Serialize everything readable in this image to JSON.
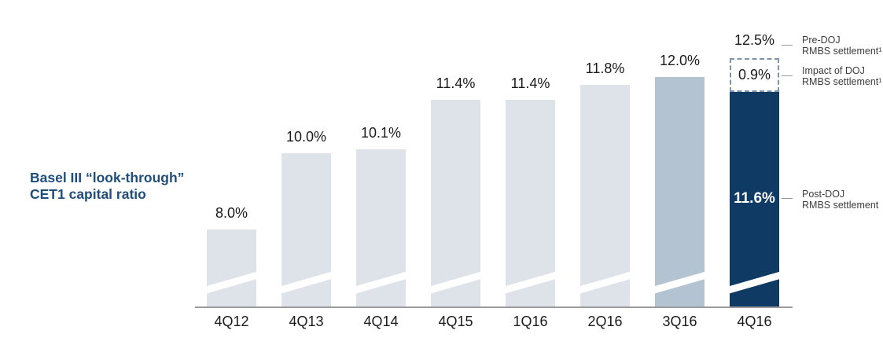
{
  "chart_data": {
    "type": "bar",
    "title": "Basel III “look-through” CET1 capital ratio",
    "title_lines": [
      "Basel III “look-through”",
      "CET1 capital ratio"
    ],
    "categories": [
      "4Q12",
      "4Q13",
      "4Q14",
      "4Q15",
      "1Q16",
      "2Q16",
      "3Q16",
      "4Q16"
    ],
    "values": [
      8.0,
      10.0,
      10.1,
      11.4,
      11.4,
      11.8,
      12.0,
      11.6
    ],
    "data_labels": [
      "8.0%",
      "10.0%",
      "10.1%",
      "11.4%",
      "11.4%",
      "11.8%",
      "12.0%",
      "11.6%"
    ],
    "bar_styles": [
      "default",
      "default",
      "default",
      "default",
      "default",
      "default",
      "highlight",
      "accent"
    ],
    "axis_break": true,
    "grid": false,
    "legend": "none",
    "ylim": [
      0,
      13
    ],
    "final_bar": {
      "category": "4Q16",
      "post_doj_value": 11.6,
      "post_doj_label": "11.6%",
      "impact_value": 0.9,
      "impact_label": "0.9%",
      "pre_doj_value": 12.5,
      "pre_doj_label": "12.5%"
    },
    "annotations": [
      {
        "lines": [
          "Pre-DOJ",
          "RMBS settlement¹"
        ]
      },
      {
        "lines": [
          "Impact of DOJ",
          "RMBS settlement¹"
        ]
      },
      {
        "lines": [
          "Post-DOJ",
          "RMBS settlement"
        ]
      }
    ],
    "colors": {
      "bar_default": "#dee2e9",
      "bar_highlight": "#b4c3d1",
      "bar_accent": "#0e3a63",
      "title_text": "#1d4e7c",
      "axis_line": "#9b9b9b",
      "dashed_outline": "#7e96ad",
      "annotation_text": "#3d3d3d",
      "label_text": "#1a1a1a",
      "inner_label_text": "#ffffff"
    }
  }
}
